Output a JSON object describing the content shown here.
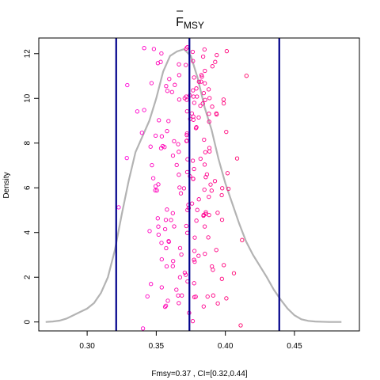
{
  "chart_data": {
    "type": "scatter",
    "title": "F",
    "title_subscript": "MSY",
    "title_overline": true,
    "xlabel": "Fmsy=0.37 , CI=[0.32,0.44]",
    "ylabel": "Density",
    "xlim": [
      0.265,
      0.497
    ],
    "ylim": [
      -0.4,
      12.7
    ],
    "x_ticks": [
      0.3,
      0.35,
      0.4,
      0.45
    ],
    "x_tick_labels": [
      "0.30",
      "0.35",
      "0.40",
      "0.45"
    ],
    "y_ticks": [
      0,
      2,
      4,
      6,
      8,
      10,
      12
    ],
    "y_tick_labels": [
      "0",
      "2",
      "4",
      "6",
      "8",
      "10",
      "12"
    ],
    "vertical_lines": [
      {
        "role": "ci_lower",
        "x": 0.321
      },
      {
        "role": "point_estimate",
        "x": 0.374
      },
      {
        "role": "ci_upper",
        "x": 0.439
      }
    ],
    "density_curve": {
      "x": [
        0.27,
        0.275,
        0.28,
        0.285,
        0.29,
        0.295,
        0.3,
        0.305,
        0.31,
        0.315,
        0.32,
        0.325,
        0.33,
        0.335,
        0.34,
        0.345,
        0.35,
        0.355,
        0.36,
        0.365,
        0.37,
        0.375,
        0.38,
        0.385,
        0.39,
        0.395,
        0.4,
        0.405,
        0.41,
        0.415,
        0.42,
        0.425,
        0.43,
        0.435,
        0.44,
        0.445,
        0.45,
        0.455,
        0.46,
        0.465,
        0.47,
        0.475,
        0.48,
        0.484
      ],
      "y": [
        0.0,
        0.02,
        0.06,
        0.15,
        0.3,
        0.45,
        0.6,
        0.85,
        1.3,
        2.0,
        3.2,
        4.8,
        6.3,
        7.6,
        8.3,
        9.0,
        10.0,
        11.2,
        11.9,
        12.1,
        12.2,
        11.9,
        10.9,
        9.6,
        8.6,
        7.3,
        6.2,
        5.3,
        4.4,
        3.6,
        3.0,
        2.5,
        2.0,
        1.45,
        1.0,
        0.6,
        0.3,
        0.12,
        0.05,
        0.02,
        0.01,
        0.0,
        0.0,
        0.0
      ]
    },
    "colors": {
      "density_curve": "#b3b3b3",
      "ci_lines": "#00008b",
      "points_low": "#ff00ff",
      "points_high": "#ff0000"
    }
  }
}
